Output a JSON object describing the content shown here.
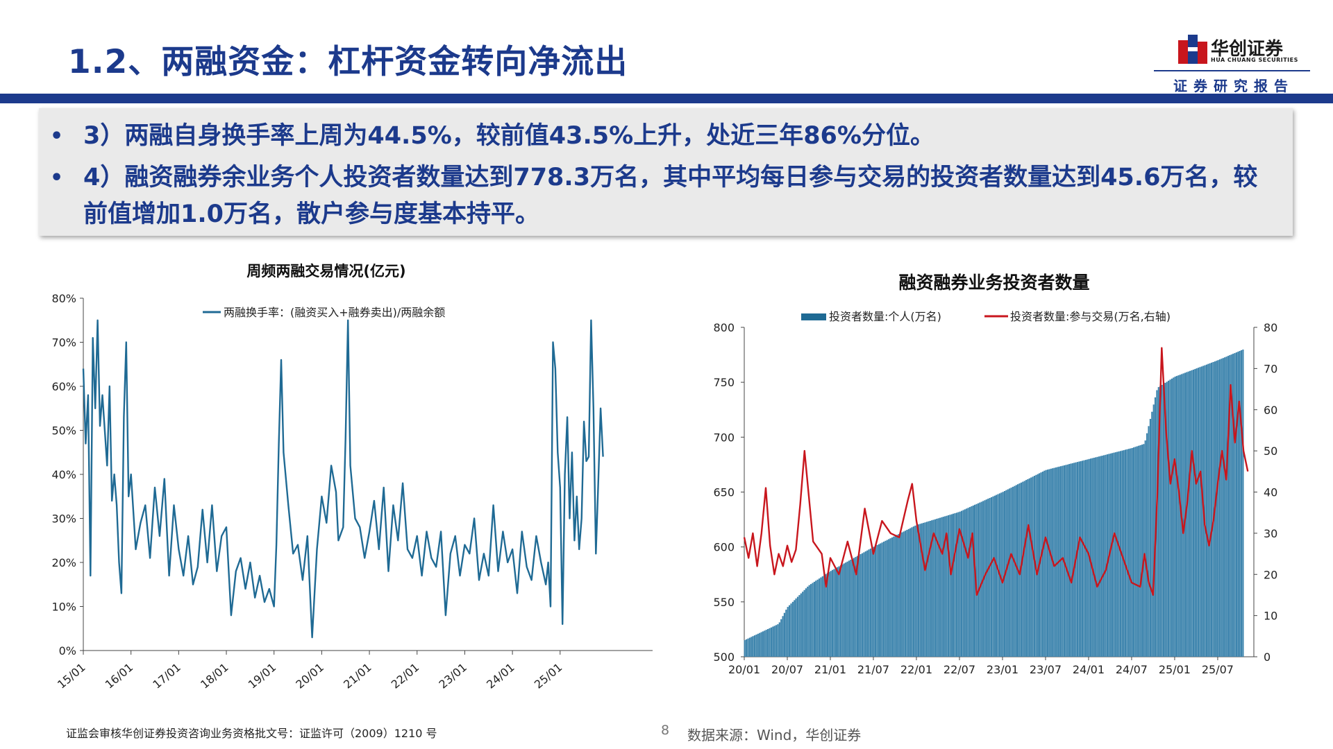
{
  "header": {
    "title": "1.2、两融资金：杠杆资金转向净流出",
    "logo_name": "华创证券",
    "logo_en": "HUA CHUANG SECURITIES",
    "subtitle": "证券研究报告"
  },
  "bullets": [
    {
      "marker": "•",
      "text": "3）两融自身换手率上周为44.5%，较前值43.5%上升，处近三年86%分位。"
    },
    {
      "marker": "•",
      "text": "4）融资融券余业务个人投资者数量达到778.3万名，其中平均每日参与交易的投资者数量达到45.6万名，较前值增加1.0万名，散户参与度基本持平。"
    }
  ],
  "footer": {
    "license": "证监会审核华创证券投资咨询业务资格批文号：证监许可（2009）1210 号",
    "page": "8",
    "source": "数据来源：Wind，华创证券"
  },
  "colors": {
    "brand": "#1c3a8c",
    "line1": "#1f6a94",
    "bar": "#3d84ad",
    "line2": "#c8161d"
  },
  "chart_data": [
    {
      "type": "line",
      "title": "周频两融交易情况(亿元)",
      "series_name": "两融换手率：(融资买入+融券卖出)/两融余额",
      "ylim": [
        0,
        80
      ],
      "y_ticks": [
        "0%",
        "10%",
        "20%",
        "30%",
        "40%",
        "50%",
        "60%",
        "70%",
        "80%"
      ],
      "x_ticks": [
        "15/01",
        "16/01",
        "17/01",
        "18/01",
        "19/01",
        "20/01",
        "21/01",
        "22/01",
        "23/01",
        "24/01",
        "25/01"
      ],
      "x_start": 2015.0,
      "series": [
        {
          "name": "两融换手率：(融资买入+融券卖出)/两融余额",
          "points": [
            [
              2015.0,
              64
            ],
            [
              2015.05,
              47
            ],
            [
              2015.1,
              58
            ],
            [
              2015.15,
              17
            ],
            [
              2015.2,
              71
            ],
            [
              2015.25,
              55
            ],
            [
              2015.3,
              75
            ],
            [
              2015.35,
              51
            ],
            [
              2015.4,
              58
            ],
            [
              2015.45,
              50
            ],
            [
              2015.5,
              42
            ],
            [
              2015.55,
              60
            ],
            [
              2015.6,
              34
            ],
            [
              2015.65,
              40
            ],
            [
              2015.7,
              33
            ],
            [
              2015.75,
              20
            ],
            [
              2015.8,
              13
            ],
            [
              2015.85,
              53
            ],
            [
              2015.9,
              70
            ],
            [
              2015.95,
              35
            ],
            [
              2016.0,
              40
            ],
            [
              2016.1,
              23
            ],
            [
              2016.2,
              29
            ],
            [
              2016.3,
              33
            ],
            [
              2016.4,
              21
            ],
            [
              2016.5,
              37
            ],
            [
              2016.6,
              26
            ],
            [
              2016.7,
              39
            ],
            [
              2016.8,
              17
            ],
            [
              2016.9,
              33
            ],
            [
              2017.0,
              23
            ],
            [
              2017.1,
              17
            ],
            [
              2017.2,
              26
            ],
            [
              2017.3,
              15
            ],
            [
              2017.4,
              19
            ],
            [
              2017.5,
              32
            ],
            [
              2017.6,
              20
            ],
            [
              2017.7,
              33
            ],
            [
              2017.8,
              18
            ],
            [
              2017.9,
              26
            ],
            [
              2018.0,
              28
            ],
            [
              2018.1,
              8
            ],
            [
              2018.2,
              18
            ],
            [
              2018.3,
              21
            ],
            [
              2018.4,
              14
            ],
            [
              2018.5,
              20
            ],
            [
              2018.6,
              12
            ],
            [
              2018.7,
              17
            ],
            [
              2018.8,
              11
            ],
            [
              2018.9,
              14
            ],
            [
              2019.0,
              10
            ],
            [
              2019.05,
              24
            ],
            [
              2019.1,
              47
            ],
            [
              2019.15,
              66
            ],
            [
              2019.2,
              45
            ],
            [
              2019.3,
              33
            ],
            [
              2019.4,
              22
            ],
            [
              2019.5,
              24
            ],
            [
              2019.6,
              16
            ],
            [
              2019.7,
              26
            ],
            [
              2019.8,
              3
            ],
            [
              2019.9,
              23
            ],
            [
              2020.0,
              35
            ],
            [
              2020.1,
              29
            ],
            [
              2020.2,
              42
            ],
            [
              2020.3,
              36
            ],
            [
              2020.35,
              25
            ],
            [
              2020.45,
              28
            ],
            [
              2020.5,
              48
            ],
            [
              2020.55,
              75
            ],
            [
              2020.6,
              42
            ],
            [
              2020.7,
              30
            ],
            [
              2020.8,
              28
            ],
            [
              2020.9,
              21
            ],
            [
              2021.0,
              27
            ],
            [
              2021.1,
              34
            ],
            [
              2021.2,
              23
            ],
            [
              2021.3,
              37
            ],
            [
              2021.4,
              18
            ],
            [
              2021.5,
              33
            ],
            [
              2021.6,
              25
            ],
            [
              2021.7,
              38
            ],
            [
              2021.8,
              23
            ],
            [
              2021.9,
              21
            ],
            [
              2022.0,
              26
            ],
            [
              2022.1,
              17
            ],
            [
              2022.2,
              27
            ],
            [
              2022.3,
              21
            ],
            [
              2022.4,
              19
            ],
            [
              2022.5,
              27
            ],
            [
              2022.6,
              8
            ],
            [
              2022.7,
              22
            ],
            [
              2022.8,
              26
            ],
            [
              2022.9,
              17
            ],
            [
              2023.0,
              24
            ],
            [
              2023.1,
              22
            ],
            [
              2023.2,
              30
            ],
            [
              2023.3,
              16
            ],
            [
              2023.4,
              22
            ],
            [
              2023.5,
              17
            ],
            [
              2023.6,
              33
            ],
            [
              2023.7,
              18
            ],
            [
              2023.8,
              27
            ],
            [
              2023.9,
              20
            ],
            [
              2024.0,
              23
            ],
            [
              2024.1,
              13
            ],
            [
              2024.2,
              27
            ],
            [
              2024.3,
              19
            ],
            [
              2024.4,
              16
            ],
            [
              2024.5,
              26
            ],
            [
              2024.6,
              20
            ],
            [
              2024.7,
              15
            ],
            [
              2024.75,
              20
            ],
            [
              2024.8,
              10
            ],
            [
              2024.85,
              70
            ],
            [
              2024.9,
              64
            ],
            [
              2024.95,
              45
            ],
            [
              2025.0,
              37
            ],
            [
              2025.05,
              6
            ],
            [
              2025.1,
              40
            ],
            [
              2025.15,
              53
            ],
            [
              2025.2,
              30
            ],
            [
              2025.25,
              45
            ],
            [
              2025.3,
              25
            ],
            [
              2025.35,
              35
            ],
            [
              2025.4,
              23
            ],
            [
              2025.45,
              30
            ],
            [
              2025.5,
              52
            ],
            [
              2025.55,
              43
            ],
            [
              2025.6,
              44
            ],
            [
              2025.65,
              75
            ],
            [
              2025.7,
              55
            ],
            [
              2025.75,
              22
            ],
            [
              2025.8,
              38
            ],
            [
              2025.85,
              55
            ],
            [
              2025.9,
              44
            ]
          ]
        }
      ]
    },
    {
      "type": "bar+line",
      "title": "融资融券业务投资者数量",
      "legend": [
        "投资者数量:个人(万名)",
        "投资者数量:参与交易(万名,右轴)"
      ],
      "x_ticks": [
        "20/01",
        "20/07",
        "21/01",
        "21/07",
        "22/01",
        "22/07",
        "23/01",
        "23/07",
        "24/01",
        "24/07",
        "25/01",
        "25/07"
      ],
      "y_left_ticks": [
        "500",
        "550",
        "600",
        "650",
        "700",
        "750",
        "800"
      ],
      "y_right_ticks": [
        "0",
        "10",
        "20",
        "30",
        "40",
        "50",
        "60",
        "70",
        "80"
      ],
      "ylim_left": [
        500,
        800
      ],
      "ylim_right": [
        0,
        80
      ],
      "x_start": 2020.0,
      "series": [
        {
          "name": "投资者数量:个人(万名)",
          "axis": "left",
          "points": [
            [
              2020.0,
              515
            ],
            [
              2020.4,
              530
            ],
            [
              2020.5,
              545
            ],
            [
              2020.75,
              565
            ],
            [
              2021.0,
              578
            ],
            [
              2021.5,
              600
            ],
            [
              2022.0,
              620
            ],
            [
              2022.5,
              632
            ],
            [
              2023.0,
              650
            ],
            [
              2023.25,
              660
            ],
            [
              2023.5,
              670
            ],
            [
              2024.0,
              680
            ],
            [
              2024.5,
              690
            ],
            [
              2024.65,
              694
            ],
            [
              2024.8,
              745
            ],
            [
              2025.0,
              755
            ],
            [
              2025.5,
              770
            ],
            [
              2025.8,
              780
            ]
          ]
        },
        {
          "name": "投资者数量:参与交易(万名,右轴)",
          "axis": "right",
          "points": [
            [
              2020.0,
              29
            ],
            [
              2020.05,
              24
            ],
            [
              2020.1,
              30
            ],
            [
              2020.15,
              22
            ],
            [
              2020.2,
              30
            ],
            [
              2020.25,
              41
            ],
            [
              2020.3,
              27
            ],
            [
              2020.35,
              20
            ],
            [
              2020.4,
              25
            ],
            [
              2020.45,
              22
            ],
            [
              2020.5,
              27
            ],
            [
              2020.55,
              23
            ],
            [
              2020.6,
              26
            ],
            [
              2020.65,
              37
            ],
            [
              2020.7,
              50
            ],
            [
              2020.75,
              39
            ],
            [
              2020.8,
              28
            ],
            [
              2020.9,
              25
            ],
            [
              2020.95,
              17
            ],
            [
              2021.0,
              24
            ],
            [
              2021.1,
              20
            ],
            [
              2021.2,
              28
            ],
            [
              2021.3,
              20
            ],
            [
              2021.4,
              36
            ],
            [
              2021.5,
              25
            ],
            [
              2021.6,
              33
            ],
            [
              2021.7,
              30
            ],
            [
              2021.8,
              29
            ],
            [
              2021.9,
              38
            ],
            [
              2021.95,
              42
            ],
            [
              2022.0,
              33
            ],
            [
              2022.05,
              27
            ],
            [
              2022.1,
              21
            ],
            [
              2022.2,
              30
            ],
            [
              2022.3,
              25
            ],
            [
              2022.35,
              30
            ],
            [
              2022.4,
              20
            ],
            [
              2022.5,
              31
            ],
            [
              2022.6,
              24
            ],
            [
              2022.65,
              30
            ],
            [
              2022.7,
              15
            ],
            [
              2022.8,
              20
            ],
            [
              2022.9,
              24
            ],
            [
              2023.0,
              18
            ],
            [
              2023.1,
              25
            ],
            [
              2023.2,
              20
            ],
            [
              2023.3,
              32
            ],
            [
              2023.4,
              20
            ],
            [
              2023.5,
              29
            ],
            [
              2023.6,
              22
            ],
            [
              2023.7,
              24
            ],
            [
              2023.8,
              18
            ],
            [
              2023.9,
              29
            ],
            [
              2024.0,
              25
            ],
            [
              2024.1,
              17
            ],
            [
              2024.2,
              21
            ],
            [
              2024.3,
              30
            ],
            [
              2024.4,
              24
            ],
            [
              2024.5,
              18
            ],
            [
              2024.6,
              17
            ],
            [
              2024.65,
              25
            ],
            [
              2024.7,
              18
            ],
            [
              2024.75,
              15
            ],
            [
              2024.8,
              40
            ],
            [
              2024.85,
              75
            ],
            [
              2024.9,
              55
            ],
            [
              2024.95,
              42
            ],
            [
              2025.0,
              48
            ],
            [
              2025.05,
              40
            ],
            [
              2025.1,
              30
            ],
            [
              2025.15,
              38
            ],
            [
              2025.2,
              50
            ],
            [
              2025.25,
              42
            ],
            [
              2025.3,
              45
            ],
            [
              2025.35,
              32
            ],
            [
              2025.4,
              27
            ],
            [
              2025.45,
              33
            ],
            [
              2025.5,
              42
            ],
            [
              2025.55,
              50
            ],
            [
              2025.6,
              43
            ],
            [
              2025.65,
              66
            ],
            [
              2025.7,
              52
            ],
            [
              2025.75,
              62
            ],
            [
              2025.8,
              50
            ],
            [
              2025.85,
              45
            ]
          ]
        }
      ]
    }
  ]
}
